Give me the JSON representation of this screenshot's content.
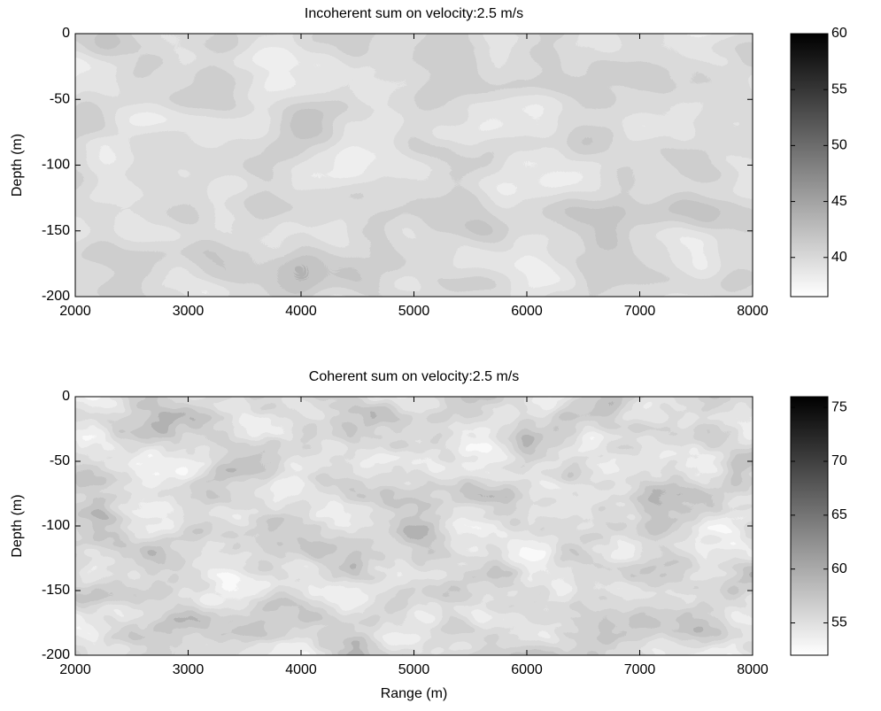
{
  "chart_data": [
    {
      "type": "contour",
      "title": "Incoherent sum on velocity:2.5 m/s",
      "ylabel": "Depth (m)",
      "xlim": [
        2000,
        8000
      ],
      "xticks": [
        2000,
        3000,
        4000,
        5000,
        6000,
        7000,
        8000
      ],
      "ylim": [
        -200,
        0
      ],
      "yticks": [
        -200,
        -150,
        -100,
        -50,
        0
      ],
      "colormap": "gray",
      "colorbar": {
        "lim": [
          36.5,
          60
        ],
        "ticks": [
          40,
          45,
          50,
          55,
          60
        ]
      }
    },
    {
      "type": "contour",
      "title": "Coherent sum on velocity:2.5 m/s",
      "xlabel": "Range (m)",
      "ylabel": "Depth (m)",
      "xlim": [
        2000,
        8000
      ],
      "xticks": [
        2000,
        3000,
        4000,
        5000,
        6000,
        7000,
        8000
      ],
      "ylim": [
        -200,
        0
      ],
      "yticks": [
        -200,
        -150,
        -100,
        -50,
        0
      ],
      "colormap": "gray",
      "colorbar": {
        "lim": [
          52,
          76
        ],
        "ticks": [
          55,
          60,
          65,
          70,
          75
        ]
      }
    }
  ]
}
